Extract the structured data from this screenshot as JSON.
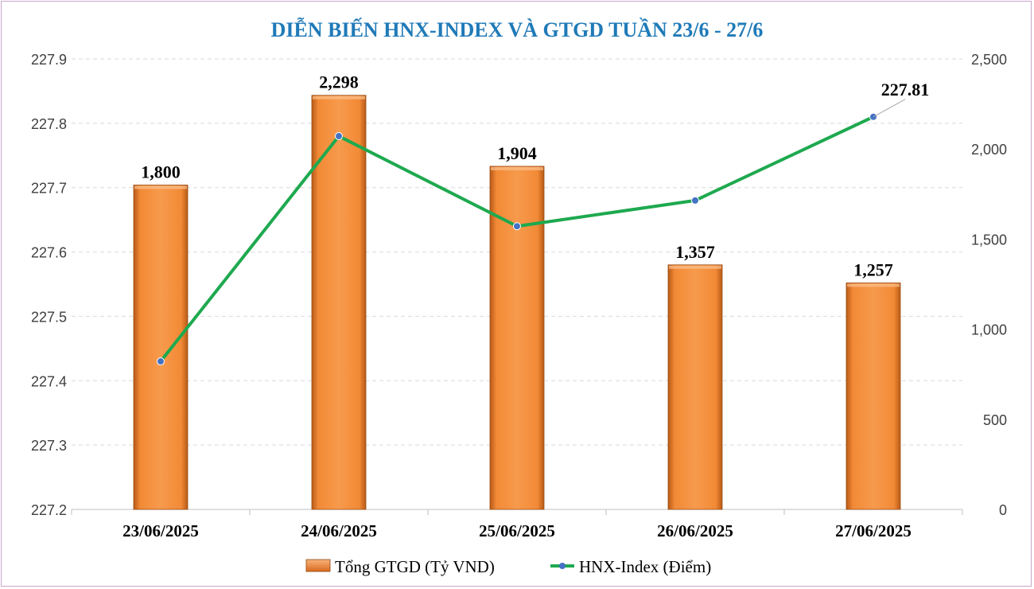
{
  "chart_data": {
    "type": "bar+line",
    "title": "DIỄN BIẾN HNX-INDEX VÀ GTGD TUẦN 23/6 - 27/6",
    "categories": [
      "23/06/2025",
      "24/06/2025",
      "25/06/2025",
      "26/06/2025",
      "27/06/2025"
    ],
    "series": [
      {
        "name": "Tổng GTGD (Tỷ VND)",
        "type": "bar",
        "axis": "right",
        "values": [
          1800,
          2298,
          1904,
          1357,
          1257
        ],
        "value_labels": [
          "1,800",
          "2,298",
          "1,904",
          "1,357",
          "1,257"
        ]
      },
      {
        "name": "HNX-Index (Điểm)",
        "type": "line",
        "axis": "left",
        "values": [
          227.43,
          227.78,
          227.64,
          227.68,
          227.81
        ],
        "last_label": "227.81"
      }
    ],
    "left_axis": {
      "min": 227.2,
      "max": 227.9,
      "step": 0.1,
      "ticks": [
        "227.2",
        "227.3",
        "227.4",
        "227.5",
        "227.6",
        "227.7",
        "227.8",
        "227.9"
      ]
    },
    "right_axis": {
      "min": 0,
      "max": 2500,
      "step": 500,
      "ticks": [
        "0",
        "500",
        "1,000",
        "1,500",
        "2,000",
        "2,500"
      ]
    },
    "grid": true,
    "legend_position": "bottom",
    "colors": {
      "title": "#1f7ab8",
      "bar": "#f28a36",
      "line": "#1ea94f",
      "marker": "#4472c4",
      "grid": "#d9d9d9",
      "frame": "#c9a6c9"
    }
  }
}
